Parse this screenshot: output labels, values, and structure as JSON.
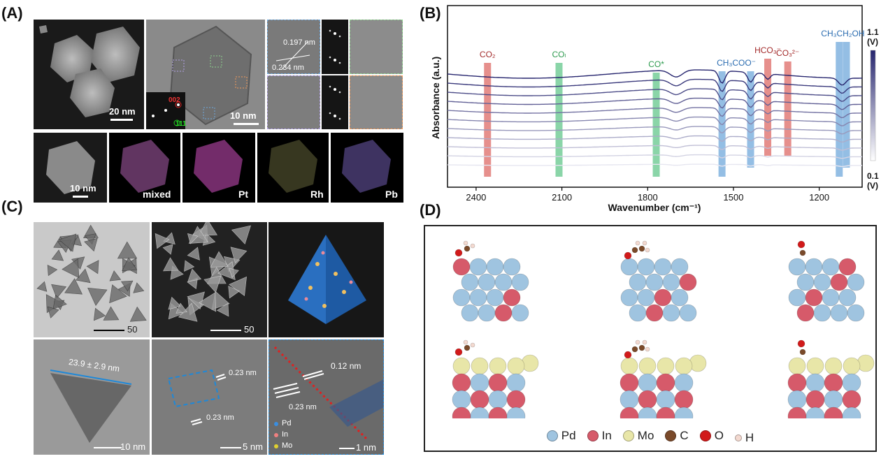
{
  "panels": {
    "a": {
      "label": "(A)"
    },
    "b": {
      "label": "(B)"
    },
    "c": {
      "label": "(C)"
    },
    "d": {
      "label": "(D)"
    }
  },
  "panel_a": {
    "scalebars": {
      "haadf": "20 nm",
      "hrtem": "10 nm",
      "map": "10 nm"
    },
    "diffraction": {
      "spot1": "002",
      "spot2": "111"
    },
    "lattice": {
      "d1": "0.197 nm",
      "d2": "0.234 nm"
    },
    "maps": [
      "mixed",
      "Pt",
      "Rh",
      "Pb"
    ]
  },
  "chart_data": {
    "type": "line",
    "xlabel": "Wavenumber (cm⁻¹)",
    "ylabel": "Absorbance (a.u.)",
    "xlim": [
      2500,
      1050
    ],
    "xticks": [
      2400,
      2100,
      1800,
      1500,
      1200
    ],
    "colorbar": {
      "top": "1.1",
      "top_unit": "(V)",
      "bottom": "0.1",
      "bottom_unit": "(V)"
    },
    "bands": [
      {
        "label": "CO₂",
        "x": 2360,
        "color": "#d9534f",
        "textcolor": "#a32a2a"
      },
      {
        "label": "COₗ",
        "x": 2110,
        "color": "#4cbf7a",
        "textcolor": "#2e9b4f"
      },
      {
        "label": "CO*",
        "x": 1770,
        "color": "#4cbf7a",
        "textcolor": "#2e9b4f"
      },
      {
        "label": "CH₃COO⁻",
        "x": 1540,
        "color": "#5b9bd5",
        "textcolor": "#2a6cb0",
        "x2": 1440
      },
      {
        "label": "HCO₃⁻",
        "x": 1380,
        "color": "#d9534f",
        "textcolor": "#a32a2a"
      },
      {
        "label": "CO₃²⁻",
        "x": 1310,
        "color": "#d9534f",
        "textcolor": "#a32a2a"
      },
      {
        "label": "CH₃CH₂OH",
        "x": 1130,
        "color": "#5b9bd5",
        "textcolor": "#2a6cb0",
        "x2": 1105
      }
    ],
    "series_count": 11
  },
  "panel_c": {
    "scalebars": [
      "50 nm",
      "50 nm",
      "10 nm",
      "5 nm",
      "1 nm"
    ],
    "size": "23.9 ± 2.9 nm",
    "lattice": {
      "a": "0.23 nm",
      "b": "0.23 nm",
      "c": "0.12 nm",
      "d": "0.23 nm"
    },
    "legend": [
      "Pd",
      "In",
      "Mo"
    ]
  },
  "panel_d": {
    "legend": [
      {
        "label": "Pd",
        "color": "#9fc4e0"
      },
      {
        "label": "In",
        "color": "#d65a6a"
      },
      {
        "label": "Mo",
        "color": "#e8e6a8"
      },
      {
        "label": "C",
        "color": "#7a4a2a"
      },
      {
        "label": "O",
        "color": "#d11a1a"
      },
      {
        "label": "H",
        "color": "#f3d9d0"
      }
    ]
  }
}
